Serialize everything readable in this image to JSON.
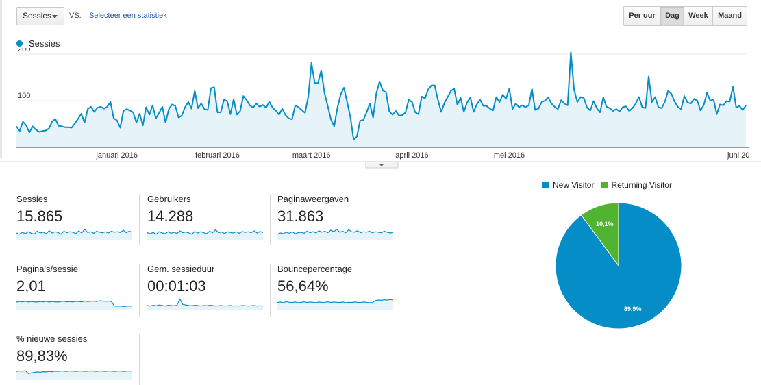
{
  "toolbar": {
    "metric_select": "Sessies",
    "vs_label": "VS.",
    "compare_link": "Selecteer een statistiek",
    "period_buttons": [
      {
        "label": "Per uur",
        "active": false
      },
      {
        "label": "Dag",
        "active": true
      },
      {
        "label": "Week",
        "active": false
      },
      {
        "label": "Maand",
        "active": false
      }
    ]
  },
  "colors": {
    "series": "#058dc7",
    "series_fill": "#e6f3f9",
    "new_visitor": "#058dc7",
    "returning_visitor": "#50b432"
  },
  "chart_data": [
    {
      "type": "area",
      "series": [
        {
          "name": "Sessies",
          "values": [
            45,
            35,
            55,
            47,
            32,
            45,
            38,
            33,
            35,
            36,
            40,
            55,
            61,
            46,
            45,
            43,
            43,
            42,
            51,
            61,
            72,
            53,
            82,
            87,
            76,
            85,
            87,
            83,
            87,
            97,
            62,
            58,
            42,
            78,
            82,
            79,
            75,
            53,
            72,
            47,
            86,
            70,
            90,
            62,
            74,
            87,
            53,
            82,
            92,
            89,
            64,
            68,
            86,
            97,
            83,
            121,
            84,
            94,
            82,
            80,
            127,
            129,
            75,
            75,
            102,
            99,
            71,
            103,
            70,
            78,
            110,
            101,
            90,
            85,
            94,
            87,
            91,
            85,
            98,
            85,
            79,
            70,
            83,
            69,
            62,
            60,
            90,
            86,
            80,
            74,
            108,
            181,
            138,
            138,
            165,
            117,
            89,
            60,
            45,
            85,
            113,
            128,
            97,
            65,
            16,
            23,
            57,
            59,
            75,
            94,
            64,
            116,
            141,
            122,
            118,
            77,
            70,
            78,
            68,
            69,
            75,
            102,
            97,
            75,
            71,
            109,
            105,
            124,
            133,
            133,
            102,
            76,
            95,
            108,
            121,
            126,
            91,
            106,
            76,
            96,
            107,
            76,
            92,
            102,
            89,
            89,
            83,
            79,
            108,
            97,
            113,
            104,
            126,
            82,
            94,
            86,
            90,
            86,
            90,
            125,
            80,
            83,
            97,
            100,
            107,
            94,
            87,
            82,
            101,
            94,
            90,
            204,
            124,
            97,
            108,
            106,
            85,
            79,
            99,
            84,
            75,
            107,
            87,
            84,
            78,
            82,
            77,
            86,
            88,
            78,
            84,
            94,
            108,
            86,
            84,
            152,
            97,
            108,
            86,
            84,
            98,
            121,
            115,
            98,
            87,
            82,
            110,
            96,
            94,
            104,
            100,
            79,
            91,
            117,
            100,
            103,
            71,
            92,
            90,
            99,
            98,
            130,
            85,
            89,
            80,
            90
          ]
        }
      ],
      "x_tick_labels": [
        "januari 2016",
        "februari 2016",
        "maart 2016",
        "april 2016",
        "mei 2016",
        "juni 20"
      ],
      "y_tick_labels": [
        "100",
        "200"
      ],
      "ylim": [
        0,
        200
      ],
      "grid": true
    },
    {
      "type": "pie",
      "legend_position": "top",
      "slices": [
        {
          "label": "New Visitor",
          "value": 89.9,
          "display": "89,9%",
          "color": "#058dc7"
        },
        {
          "label": "Returning Visitor",
          "value": 10.1,
          "display": "10,1%",
          "color": "#50b432"
        }
      ]
    }
  ],
  "metrics": [
    {
      "name": "Sessies",
      "value": "15.865",
      "trend": [
        55,
        50,
        58,
        52,
        60,
        54,
        50,
        62,
        55,
        58,
        52,
        64,
        55,
        60,
        57,
        50,
        62,
        56,
        60,
        58,
        52,
        63,
        55,
        70,
        57,
        60,
        54,
        62,
        58,
        56,
        60,
        55,
        62,
        58,
        60,
        57,
        66,
        56,
        62,
        58
      ]
    },
    {
      "name": "Gebruikers",
      "value": "14.288",
      "trend": [
        56,
        52,
        57,
        50,
        60,
        55,
        52,
        60,
        54,
        58,
        53,
        63,
        56,
        59,
        55,
        50,
        61,
        55,
        60,
        56,
        52,
        62,
        56,
        68,
        56,
        59,
        53,
        60,
        57,
        55,
        60,
        54,
        61,
        57,
        60,
        56,
        64,
        55,
        61,
        57
      ]
    },
    {
      "name": "Paginaweergaven",
      "value": "31.863",
      "trend": [
        50,
        55,
        52,
        58,
        54,
        60,
        52,
        56,
        58,
        54,
        62,
        56,
        60,
        55,
        64,
        58,
        62,
        56,
        66,
        60,
        70,
        58,
        62,
        56,
        68,
        60,
        58,
        64,
        56,
        60,
        58,
        62,
        56,
        60,
        58,
        56,
        62,
        58,
        55,
        57
      ]
    },
    {
      "name": "Pagina's/sessie",
      "value": "2,01",
      "trend": [
        58,
        60,
        59,
        61,
        58,
        60,
        59,
        58,
        60,
        59,
        61,
        58,
        60,
        59,
        58,
        60,
        61,
        59,
        60,
        58,
        61,
        60,
        59,
        62,
        60,
        61,
        62,
        60,
        63,
        62,
        61,
        62,
        60,
        42,
        41,
        42,
        40,
        41,
        42,
        41
      ]
    },
    {
      "name": "Gem. sessieduur",
      "value": "00:01:03",
      "trend": [
        44,
        42,
        45,
        43,
        46,
        44,
        42,
        45,
        44,
        43,
        45,
        70,
        48,
        46,
        44,
        43,
        45,
        44,
        42,
        44,
        43,
        45,
        44,
        42,
        43,
        44,
        42,
        43,
        44,
        42,
        43,
        42,
        44,
        43,
        42,
        43,
        44,
        42,
        43,
        42
      ]
    },
    {
      "name": "Bouncepercentage",
      "value": "56,64%",
      "trend": [
        56,
        58,
        55,
        60,
        57,
        56,
        58,
        55,
        57,
        59,
        56,
        58,
        57,
        55,
        58,
        56,
        57,
        59,
        56,
        58,
        57,
        56,
        58,
        55,
        57,
        56,
        58,
        57,
        56,
        58,
        57,
        55,
        56,
        64,
        66,
        65,
        67,
        66,
        68,
        67
      ]
    },
    {
      "name": "% nieuwe sessies",
      "value": "89,83%",
      "trend": [
        60,
        62,
        61,
        63,
        52,
        54,
        56,
        58,
        57,
        59,
        58,
        60,
        59,
        61,
        60,
        62,
        61,
        60,
        62,
        61,
        60,
        61,
        62,
        60,
        61,
        62,
        61,
        60,
        62,
        61,
        60,
        62,
        61,
        60,
        61,
        62,
        60,
        61,
        62,
        61
      ]
    }
  ]
}
